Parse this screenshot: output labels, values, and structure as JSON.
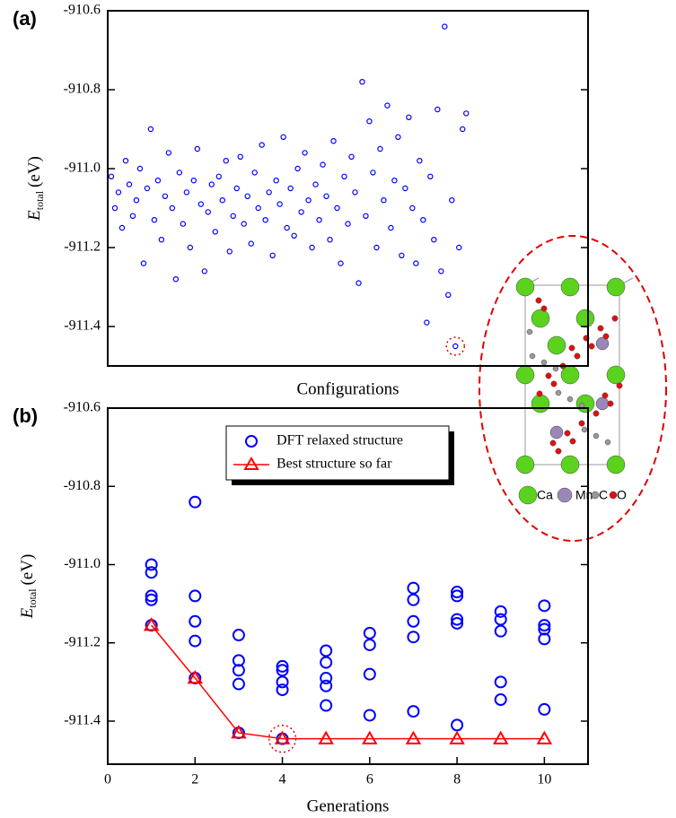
{
  "chart_data": [
    {
      "type": "scatter",
      "panel_label": "(a)",
      "x_label": "Configurations",
      "y_label": {
        "symbol": "E",
        "subscript": "total",
        "unit": "(eV)"
      },
      "color": "#0000ff",
      "marker": "circle",
      "xlim": [
        0,
        134
      ],
      "ylim": [
        -911.5,
        -910.6
      ],
      "yticks": [
        -910.6,
        -910.8,
        {
          "value": -911,
          "label": "-911.0"
        },
        -911.2,
        -911.4
      ],
      "x": [
        1,
        2,
        3,
        4,
        5,
        6,
        7,
        8,
        9,
        10,
        11,
        12,
        13,
        14,
        15,
        16,
        17,
        18,
        19,
        20,
        21,
        22,
        23,
        24,
        25,
        26,
        27,
        28,
        29,
        30,
        31,
        32,
        33,
        34,
        35,
        36,
        37,
        38,
        39,
        40,
        41,
        42,
        43,
        44,
        45,
        46,
        47,
        48,
        49,
        50,
        51,
        52,
        53,
        54,
        55,
        56,
        57,
        58,
        59,
        60,
        61,
        62,
        63,
        64,
        65,
        66,
        67,
        68,
        69,
        70,
        71,
        72,
        73,
        74,
        75,
        76,
        77,
        78,
        79,
        80,
        81,
        82,
        83,
        84,
        85,
        86,
        87,
        88,
        89,
        90,
        91,
        92,
        93,
        94,
        95,
        96,
        97,
        98,
        99,
        100
      ],
      "values": [
        -911.02,
        -911.1,
        -911.06,
        -911.15,
        -910.98,
        -911.04,
        -911.12,
        -911.08,
        -911.0,
        -911.24,
        -911.05,
        -910.9,
        -911.13,
        -911.03,
        -911.18,
        -911.07,
        -910.96,
        -911.1,
        -911.28,
        -911.01,
        -911.14,
        -911.06,
        -911.2,
        -911.03,
        -910.95,
        -911.09,
        -911.26,
        -911.11,
        -911.04,
        -911.16,
        -911.02,
        -911.08,
        -910.98,
        -911.21,
        -911.12,
        -911.05,
        -910.97,
        -911.14,
        -911.07,
        -911.19,
        -911.01,
        -911.1,
        -910.94,
        -911.13,
        -911.06,
        -911.22,
        -911.03,
        -911.09,
        -910.92,
        -911.15,
        -911.05,
        -911.17,
        -911.0,
        -911.11,
        -910.96,
        -911.08,
        -911.2,
        -911.04,
        -911.13,
        -910.99,
        -911.07,
        -911.18,
        -910.93,
        -911.1,
        -911.24,
        -911.02,
        -911.14,
        -910.97,
        -911.06,
        -911.29,
        -910.78,
        -911.12,
        -910.88,
        -911.01,
        -911.2,
        -910.95,
        -911.08,
        -910.84,
        -911.15,
        -911.03,
        -910.92,
        -911.22,
        -911.05,
        -910.87,
        -911.1,
        -911.24,
        -910.98,
        -911.13,
        -911.39,
        -911.02,
        -911.18,
        -910.85,
        -911.26,
        -910.64,
        -911.32,
        -911.08,
        -911.45,
        -911.2,
        -910.9,
        -910.86
      ],
      "highlight_index": 96,
      "inset_labels": [
        "Ca",
        "Mn",
        "C",
        "O"
      ]
    },
    {
      "type": "scatter",
      "panel_label": "(b)",
      "x_label": "Generations",
      "y_label": {
        "symbol": "E",
        "subscript": "total",
        "unit": "(eV)"
      },
      "xlim": [
        0,
        11
      ],
      "ylim": [
        -911.51,
        -910.6
      ],
      "xticks": [
        0,
        2,
        4,
        6,
        8,
        10
      ],
      "yticks": [
        -910.6,
        -910.8,
        {
          "value": -911,
          "label": "-911.0"
        },
        -911.2,
        -911.4
      ],
      "series": [
        {
          "name": "DFT relaxed structure",
          "color": "#0000ff",
          "marker": "circle",
          "connect": false,
          "x": [
            1,
            1,
            1,
            1,
            1,
            2,
            2,
            2,
            2,
            2,
            3,
            3,
            3,
            3,
            3,
            4,
            4,
            4,
            4,
            4,
            5,
            5,
            5,
            5,
            5,
            6,
            6,
            6,
            6,
            7,
            7,
            7,
            7,
            7,
            8,
            8,
            8,
            8,
            8,
            9,
            9,
            9,
            9,
            9,
            10,
            10,
            10,
            10,
            10
          ],
          "values": [
            -911.0,
            -911.02,
            -911.08,
            -911.09,
            -911.155,
            -910.84,
            -911.08,
            -911.145,
            -911.195,
            -911.29,
            -911.18,
            -911.245,
            -911.27,
            -911.305,
            -911.43,
            -911.26,
            -911.27,
            -911.3,
            -911.32,
            -911.445,
            -911.22,
            -911.25,
            -911.29,
            -911.31,
            -911.36,
            -911.175,
            -911.205,
            -911.28,
            -911.385,
            -911.06,
            -911.09,
            -911.145,
            -911.185,
            -911.375,
            -911.07,
            -911.08,
            -911.14,
            -911.15,
            -911.41,
            -911.12,
            -911.14,
            -911.17,
            -911.3,
            -911.345,
            -911.105,
            -911.155,
            -911.165,
            -911.19,
            -911.37
          ]
        },
        {
          "name": "Best structure so far",
          "color": "#ff0000",
          "marker": "triangle",
          "connect": true,
          "x": [
            1,
            2,
            3,
            4,
            5,
            6,
            7,
            8,
            9,
            10
          ],
          "values": [
            -911.155,
            -911.29,
            -911.43,
            -911.445,
            -911.445,
            -911.445,
            -911.445,
            -911.445,
            -911.445,
            -911.445
          ]
        }
      ],
      "highlight_index": 3
    }
  ]
}
